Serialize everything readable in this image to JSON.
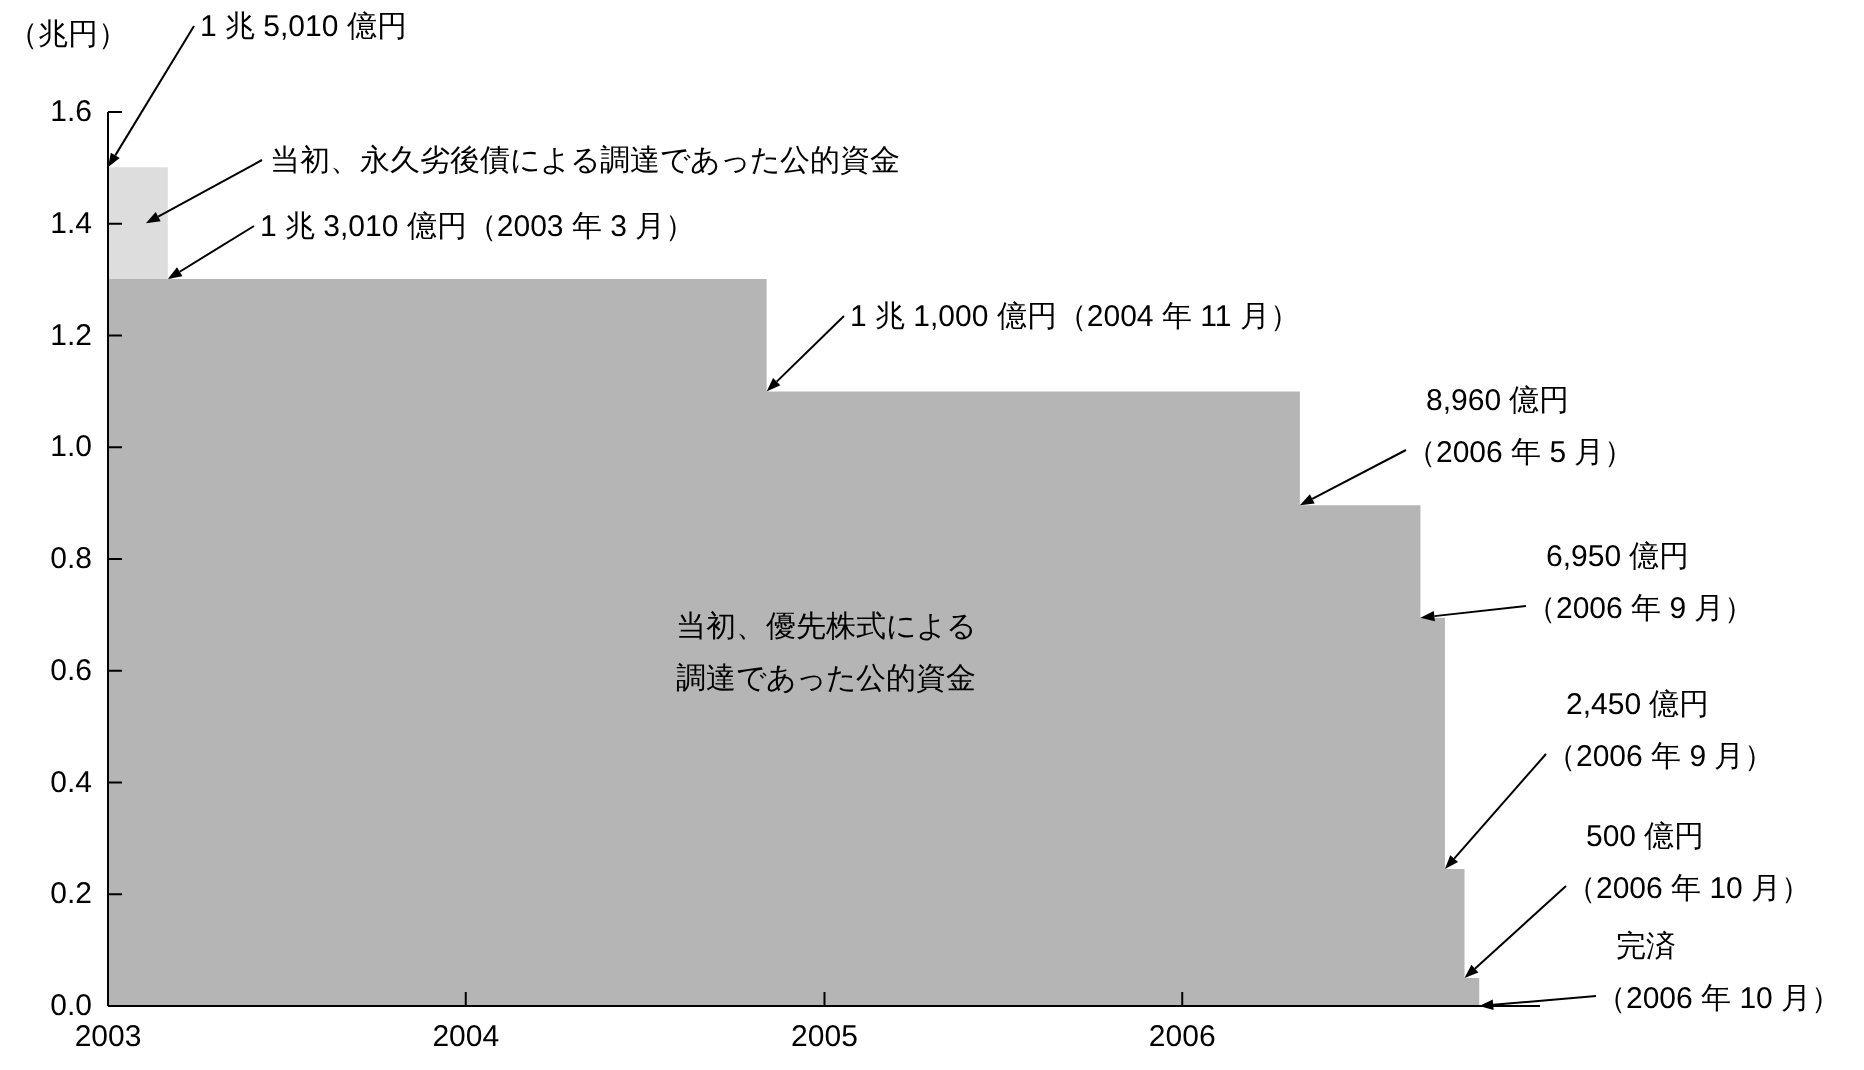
{
  "chart_data": {
    "type": "area",
    "ylabel": "（兆円）",
    "series": [
      {
        "name": "当初、永久劣後債による調達であった公的資金",
        "color": "#dcdddc",
        "x": [
          "2003-01-01",
          "2003-03-03",
          "2003-03-03"
        ],
        "values": [
          1.501,
          1.501,
          0
        ]
      },
      {
        "name": "当初、優先株式による調達であった公的資金",
        "color": "#b4b5b4",
        "x": [
          "2003-01-01",
          "2004-11-03",
          "2004-11-03",
          "2006-05-01",
          "2006-05-01",
          "2006-09-01",
          "2006-09-01",
          "2006-09-26",
          "2006-09-26",
          "2006-10-16",
          "2006-10-16",
          "2006-10-31",
          "2006-10-31"
        ],
        "values": [
          1.301,
          1.301,
          1.1,
          1.1,
          0.896,
          0.896,
          0.695,
          0.695,
          0.245,
          0.245,
          0.05,
          0.05,
          0
        ]
      }
    ],
    "xlim": [
      "2003-01-01",
      "2007-01-01"
    ],
    "xticks": [
      "2003",
      "2004",
      "2005",
      "2006"
    ],
    "ylim": [
      0,
      1.6
    ],
    "yticks": [
      {
        "value": 0,
        "label": "0.0"
      },
      {
        "value": 0.2,
        "label": "0.2"
      },
      {
        "value": 0.4,
        "label": "0.4"
      },
      {
        "value": 0.6,
        "label": "0.6"
      },
      {
        "value": 0.8,
        "label": "0.8"
      },
      {
        "value": 1,
        "label": "1.0"
      },
      {
        "value": 1.2,
        "label": "1.2"
      },
      {
        "value": 1.4,
        "label": "1.4"
      },
      {
        "value": 1.6,
        "label": "1.6"
      }
    ],
    "grid": false,
    "annotations": [
      {
        "text": "1 兆 5,010 億円",
        "x": "2003-01-01",
        "y": 1.501
      },
      {
        "text": "1 兆 3,010 億円（2003 年 3 月）",
        "x": "2003-03-03",
        "y": 1.301
      },
      {
        "text": "1 兆 1,000 億円（2004 年 11 月）",
        "x": "2004-11-03",
        "y": 1.1
      },
      {
        "text": "8,960 億円（2006 年 5 月）",
        "x": "2006-05-01",
        "y": 0.896
      },
      {
        "text": "6,950 億円（2006 年 9 月）",
        "x": "2006-09-01",
        "y": 0.695
      },
      {
        "text": "2,450 億円（2006 年 9 月）",
        "x": "2006-09-26",
        "y": 0.245
      },
      {
        "text": "500 億円（2006 年 10 月）",
        "x": "2006-10-16",
        "y": 0.05
      },
      {
        "text": "完済（2006 年 10 月）",
        "x": "2006-10-31",
        "y": 0
      }
    ]
  }
}
